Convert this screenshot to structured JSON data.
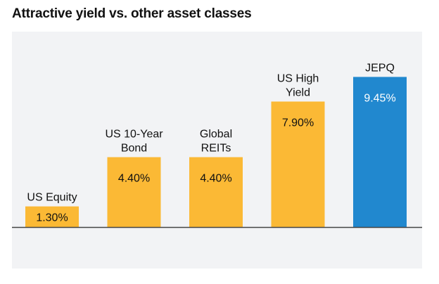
{
  "page": {
    "title": "Attractive yield vs. other asset classes"
  },
  "chart_data": {
    "type": "bar",
    "title": "Attractive yield vs. other asset classes",
    "xlabel": "",
    "ylabel": "",
    "ylim": [
      0,
      10
    ],
    "grid": false,
    "legend": "none",
    "categories": [
      "US Equity",
      "US 10-Year Bond",
      "Global REITs",
      "US High Yield",
      "JEPQ"
    ],
    "category_lines": [
      [
        "US Equity"
      ],
      [
        "US 10-Year",
        "Bond"
      ],
      [
        "Global",
        "REITs"
      ],
      [
        "US High",
        "Yield"
      ],
      [
        "JEPQ"
      ]
    ],
    "values": [
      1.3,
      4.4,
      4.4,
      7.9,
      9.45
    ],
    "value_labels": [
      "1.30%",
      "4.40%",
      "4.40%",
      "7.90%",
      "9.45%"
    ],
    "colors": [
      "#fbb935",
      "#fbb935",
      "#fbb935",
      "#fbb935",
      "#2188cf"
    ],
    "value_label_colors": [
      "#111111",
      "#111111",
      "#111111",
      "#111111",
      "#ffffff"
    ],
    "baseline_color": "#444444"
  }
}
